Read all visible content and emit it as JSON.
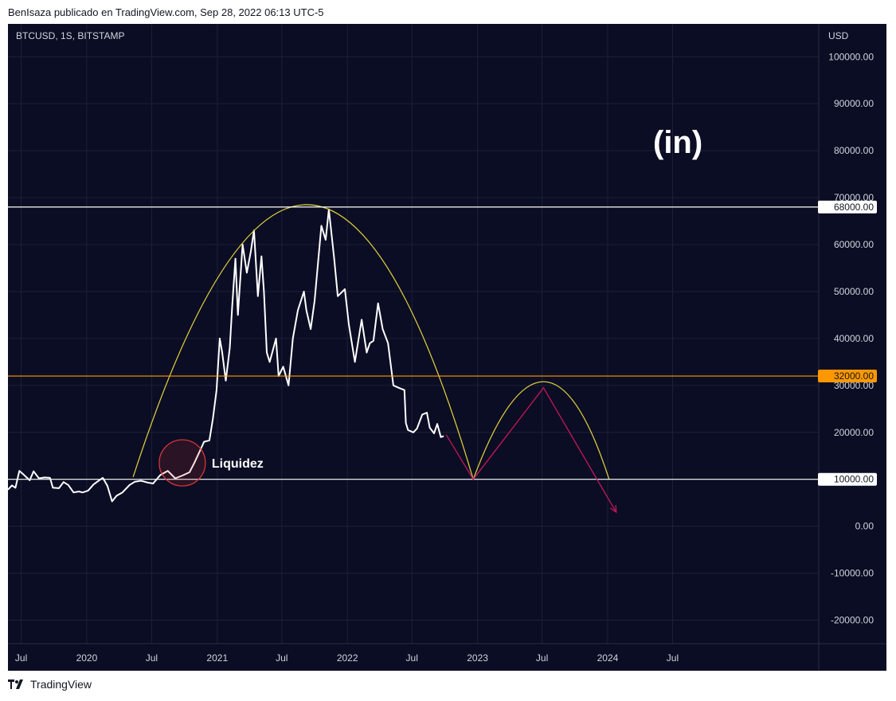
{
  "header": {
    "publish_text": "BenIsaza publicado en TradingView.com, Sep 28, 2022 06:13 UTC-5"
  },
  "footer": {
    "brand": "TradingView"
  },
  "chart_data": {
    "type": "line",
    "symbol_label": "BTCUSD, 1S, BITSTAMP",
    "axis_unit": "USD",
    "ylim": [
      -25000,
      107000
    ],
    "y_ticks": [
      100000,
      90000,
      80000,
      70000,
      60000,
      50000,
      40000,
      30000,
      20000,
      10000,
      0,
      -10000,
      -20000
    ],
    "y_tick_labels": [
      "100000.00",
      "90000.00",
      "80000.00",
      "70000.00",
      "60000.00",
      "50000.00",
      "40000.00",
      "30000.00",
      "20000.00",
      "10000.00",
      "0.00",
      "-10000.00",
      "-20000.00"
    ],
    "x_range": [
      "2019-05-25",
      "2025-08-15"
    ],
    "x_ticks": [
      {
        "date": "2019-07-01",
        "label": "Jul"
      },
      {
        "date": "2020-01-01",
        "label": "2020"
      },
      {
        "date": "2020-07-01",
        "label": "Jul"
      },
      {
        "date": "2021-01-01",
        "label": "2021"
      },
      {
        "date": "2021-07-01",
        "label": "Jul"
      },
      {
        "date": "2022-01-01",
        "label": "2022"
      },
      {
        "date": "2022-07-01",
        "label": "Jul"
      },
      {
        "date": "2023-01-01",
        "label": "2023"
      },
      {
        "date": "2023-07-01",
        "label": "Jul"
      },
      {
        "date": "2024-01-01",
        "label": "2024"
      },
      {
        "date": "2024-07-01",
        "label": "Jul"
      }
    ],
    "series": [
      {
        "color": "#ffffff",
        "points": [
          [
            "2019-05-25",
            7800
          ],
          [
            "2019-06-05",
            8700
          ],
          [
            "2019-06-15",
            8200
          ],
          [
            "2019-06-26",
            11800
          ],
          [
            "2019-07-05",
            11200
          ],
          [
            "2019-07-15",
            10500
          ],
          [
            "2019-07-25",
            9800
          ],
          [
            "2019-08-05",
            11700
          ],
          [
            "2019-08-20",
            10200
          ],
          [
            "2019-09-05",
            10400
          ],
          [
            "2019-09-20",
            10300
          ],
          [
            "2019-09-28",
            8200
          ],
          [
            "2019-10-15",
            8100
          ],
          [
            "2019-10-28",
            9400
          ],
          [
            "2019-11-10",
            8800
          ],
          [
            "2019-11-25",
            7200
          ],
          [
            "2019-12-10",
            7400
          ],
          [
            "2019-12-20",
            7200
          ],
          [
            "2020-01-05",
            7600
          ],
          [
            "2020-01-20",
            8900
          ],
          [
            "2020-02-05",
            9800
          ],
          [
            "2020-02-15",
            10300
          ],
          [
            "2020-02-28",
            8600
          ],
          [
            "2020-03-12",
            5300
          ],
          [
            "2020-03-25",
            6500
          ],
          [
            "2020-04-10",
            7200
          ],
          [
            "2020-04-30",
            8800
          ],
          [
            "2020-05-15",
            9500
          ],
          [
            "2020-06-01",
            9700
          ],
          [
            "2020-06-20",
            9300
          ],
          [
            "2020-07-05",
            9100
          ],
          [
            "2020-07-25",
            10900
          ],
          [
            "2020-08-15",
            11800
          ],
          [
            "2020-09-05",
            10200
          ],
          [
            "2020-09-25",
            10800
          ],
          [
            "2020-10-15",
            11500
          ],
          [
            "2020-10-28",
            13400
          ],
          [
            "2020-11-10",
            15500
          ],
          [
            "2020-11-25",
            18000
          ],
          [
            "2020-12-10",
            18300
          ],
          [
            "2020-12-20",
            23000
          ],
          [
            "2020-12-30",
            29000
          ],
          [
            "2021-01-08",
            40000
          ],
          [
            "2021-01-15",
            37000
          ],
          [
            "2021-01-25",
            31000
          ],
          [
            "2021-02-05",
            38000
          ],
          [
            "2021-02-12",
            47000
          ],
          [
            "2021-02-21",
            57000
          ],
          [
            "2021-02-28",
            45000
          ],
          [
            "2021-03-13",
            60000
          ],
          [
            "2021-03-25",
            54000
          ],
          [
            "2021-04-05",
            58500
          ],
          [
            "2021-04-14",
            63000
          ],
          [
            "2021-04-25",
            49000
          ],
          [
            "2021-05-05",
            57500
          ],
          [
            "2021-05-12",
            50000
          ],
          [
            "2021-05-20",
            37000
          ],
          [
            "2021-05-28",
            35000
          ],
          [
            "2021-06-15",
            40000
          ],
          [
            "2021-06-22",
            32000
          ],
          [
            "2021-07-05",
            34000
          ],
          [
            "2021-07-20",
            30000
          ],
          [
            "2021-08-01",
            40000
          ],
          [
            "2021-08-15",
            46000
          ],
          [
            "2021-09-01",
            50000
          ],
          [
            "2021-09-08",
            46000
          ],
          [
            "2021-09-20",
            42000
          ],
          [
            "2021-10-01",
            48000
          ],
          [
            "2021-10-20",
            64000
          ],
          [
            "2021-11-01",
            61000
          ],
          [
            "2021-11-10",
            67500
          ],
          [
            "2021-11-25",
            57000
          ],
          [
            "2021-12-05",
            49000
          ],
          [
            "2021-12-25",
            50500
          ],
          [
            "2022-01-05",
            43000
          ],
          [
            "2022-01-22",
            35000
          ],
          [
            "2022-02-10",
            44000
          ],
          [
            "2022-02-24",
            37000
          ],
          [
            "2022-03-05",
            39000
          ],
          [
            "2022-03-15",
            39500
          ],
          [
            "2022-03-28",
            47500
          ],
          [
            "2022-04-10",
            42000
          ],
          [
            "2022-04-25",
            39000
          ],
          [
            "2022-05-10",
            30000
          ],
          [
            "2022-05-25",
            29500
          ],
          [
            "2022-06-10",
            29000
          ],
          [
            "2022-06-14",
            22000
          ],
          [
            "2022-06-20",
            20500
          ],
          [
            "2022-07-05",
            20000
          ],
          [
            "2022-07-15",
            20800
          ],
          [
            "2022-07-30",
            23800
          ],
          [
            "2022-08-12",
            24200
          ],
          [
            "2022-08-20",
            21000
          ],
          [
            "2022-09-01",
            19800
          ],
          [
            "2022-09-10",
            21800
          ],
          [
            "2022-09-20",
            19000
          ],
          [
            "2022-09-28",
            19200
          ]
        ]
      }
    ],
    "horizontal_levels": [
      {
        "value": 68000,
        "label": "68000.00",
        "color": "#ffffff"
      },
      {
        "value": 32000,
        "label": "32000.00",
        "color": "#ff9800"
      },
      {
        "value": 10000,
        "label": "10000.00",
        "color": "#ffffff"
      }
    ],
    "arcs": [
      {
        "color": "#d8c93a",
        "start": [
          "2020-05-10",
          10500
        ],
        "peak": [
          "2021-09-10",
          68500
        ],
        "end": [
          "2022-12-20",
          10000
        ]
      },
      {
        "color": "#d8c93a",
        "start": [
          "2022-12-20",
          10000
        ],
        "peak": [
          "2023-07-05",
          30800
        ],
        "end": [
          "2024-01-05",
          10000
        ]
      }
    ],
    "projection_lines": [
      {
        "color": "#c2185b",
        "points": [
          [
            "2022-10-05",
            19500
          ],
          [
            "2022-12-20",
            10000
          ],
          [
            "2023-07-05",
            29500
          ],
          [
            "2024-01-25",
            3000
          ]
        ],
        "arrow": true
      }
    ],
    "annotations": [
      {
        "type": "circle",
        "date": "2020-09-25",
        "value": 13500,
        "color": "#e53935",
        "text": "Liquidez"
      }
    ],
    "grid": true,
    "background": "#0b0d24",
    "logo_text": "(in)"
  }
}
